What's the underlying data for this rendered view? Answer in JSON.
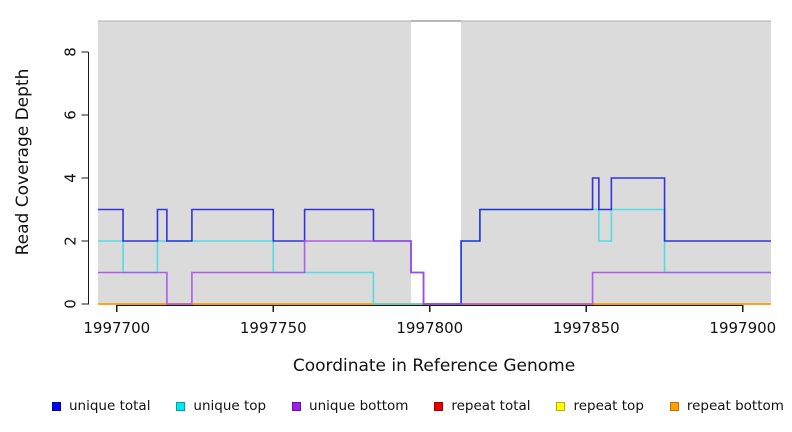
{
  "chart_data": {
    "type": "line",
    "subtype": "step",
    "title": "",
    "xlabel": "Coordinate in Reference Genome",
    "ylabel": "Read Coverage Depth",
    "xlim": [
      1997694,
      1997909
    ],
    "ylim": [
      0,
      9
    ],
    "x_ticks": [
      1997700,
      1997750,
      1997800,
      1997850,
      1997900
    ],
    "y_ticks": [
      0,
      2,
      4,
      6,
      8
    ],
    "grid": "off",
    "plot_background_color": "#DBDBDB",
    "background_regions": [
      {
        "name": "aligned-region-left",
        "start": 1997694,
        "end": 1997794,
        "color": "#DBDBDB"
      },
      {
        "name": "gap-region",
        "start": 1997794,
        "end": 1997810,
        "color": "#FFFFFF"
      },
      {
        "name": "aligned-region-right",
        "start": 1997810,
        "end": 1997909,
        "color": "#DBDBDB"
      }
    ],
    "series": [
      {
        "name": "unique total",
        "line_color": "#2121DE",
        "breakpoints": [
          [
            1997694,
            3
          ],
          [
            1997702,
            2
          ],
          [
            1997713,
            3
          ],
          [
            1997716,
            2
          ],
          [
            1997724,
            3
          ],
          [
            1997750,
            2
          ],
          [
            1997760,
            3
          ],
          [
            1997782,
            2
          ],
          [
            1997794,
            1
          ],
          [
            1997798,
            0
          ],
          [
            1997810,
            2
          ],
          [
            1997816,
            3
          ],
          [
            1997852,
            4
          ],
          [
            1997854,
            3
          ],
          [
            1997858,
            4
          ],
          [
            1997875,
            2
          ]
        ]
      },
      {
        "name": "unique top",
        "line_color": "#45DCE4",
        "breakpoints": [
          [
            1997694,
            2
          ],
          [
            1997702,
            1
          ],
          [
            1997713,
            2
          ],
          [
            1997750,
            1
          ],
          [
            1997782,
            0
          ],
          [
            1997810,
            2
          ],
          [
            1997816,
            3
          ],
          [
            1997854,
            2
          ],
          [
            1997858,
            3
          ],
          [
            1997875,
            1
          ]
        ]
      },
      {
        "name": "unique bottom",
        "line_color": "#A94FE8",
        "breakpoints": [
          [
            1997694,
            1
          ],
          [
            1997716,
            0
          ],
          [
            1997724,
            1
          ],
          [
            1997760,
            2
          ],
          [
            1997794,
            1
          ],
          [
            1997798,
            0
          ],
          [
            1997852,
            1
          ]
        ]
      },
      {
        "name": "repeat total",
        "line_color": "#DC1414",
        "breakpoints": [
          [
            1997694,
            0
          ]
        ]
      },
      {
        "name": "repeat top",
        "line_color": "#F5E626",
        "breakpoints": [
          [
            1997694,
            0
          ]
        ]
      },
      {
        "name": "repeat bottom",
        "line_color": "#FFA30E",
        "breakpoints": [
          [
            1997694,
            0
          ]
        ]
      }
    ],
    "draw_order": [
      "repeat total",
      "repeat top",
      "repeat bottom",
      "unique top",
      "unique total",
      "unique bottom"
    ],
    "legend_position": "bottom"
  },
  "legend": {
    "items": [
      {
        "label": "unique total",
        "fill": "#0000F0",
        "border": "#0000A8"
      },
      {
        "label": "unique top",
        "fill": "#00E8F0",
        "border": "#00A0A8"
      },
      {
        "label": "unique bottom",
        "fill": "#9C1FE8",
        "border": "#6E10A8"
      },
      {
        "label": "repeat total",
        "fill": "#E80000",
        "border": "#A80000"
      },
      {
        "label": "repeat top",
        "fill": "#FFFF00",
        "border": "#B0B000"
      },
      {
        "label": "repeat bottom",
        "fill": "#FFA000",
        "border": "#B87400"
      }
    ]
  }
}
